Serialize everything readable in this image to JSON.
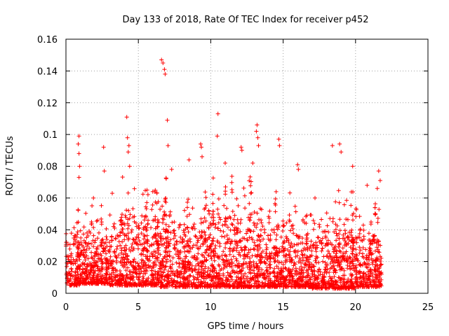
{
  "chart_data": {
    "type": "scatter",
    "title": "Day 133 of 2018, Rate Of TEC Index for receiver p452",
    "xlabel": "GPS time / hours",
    "ylabel": "ROTI / TECUs",
    "xlim": [
      0,
      25
    ],
    "ylim": [
      0,
      0.16
    ],
    "xticks": [
      0,
      5,
      10,
      15,
      20,
      25
    ],
    "yticks": [
      0,
      0.02,
      0.04,
      0.06,
      0.08,
      0.1,
      0.12,
      0.14,
      0.16
    ],
    "xtick_labels": [
      "0",
      "5",
      "10",
      "15",
      "20",
      "25"
    ],
    "ytick_labels": [
      "0",
      "0.02",
      "0.04",
      "0.06",
      "0.08",
      "0.1",
      "0.12",
      "0.14",
      "0.16"
    ],
    "grid": true,
    "marker": "+",
    "color": "#ff0000",
    "data_extent_x": [
      0,
      21.8
    ],
    "baseline_range": [
      0.005,
      0.045
    ],
    "notable_points": [
      {
        "x": 6.6,
        "y": 0.147
      },
      {
        "x": 6.7,
        "y": 0.145
      },
      {
        "x": 6.8,
        "y": 0.141
      },
      {
        "x": 6.85,
        "y": 0.138
      },
      {
        "x": 7.0,
        "y": 0.109
      },
      {
        "x": 7.05,
        "y": 0.093
      },
      {
        "x": 4.2,
        "y": 0.111
      },
      {
        "x": 4.25,
        "y": 0.098
      },
      {
        "x": 4.35,
        "y": 0.093
      },
      {
        "x": 4.3,
        "y": 0.089
      },
      {
        "x": 4.4,
        "y": 0.08
      },
      {
        "x": 10.5,
        "y": 0.113
      },
      {
        "x": 10.45,
        "y": 0.099
      },
      {
        "x": 13.2,
        "y": 0.106
      },
      {
        "x": 13.15,
        "y": 0.102
      },
      {
        "x": 13.25,
        "y": 0.098
      },
      {
        "x": 13.3,
        "y": 0.093
      },
      {
        "x": 14.7,
        "y": 0.097
      },
      {
        "x": 14.75,
        "y": 0.093
      },
      {
        "x": 0.9,
        "y": 0.099
      },
      {
        "x": 0.85,
        "y": 0.094
      },
      {
        "x": 0.9,
        "y": 0.088
      },
      {
        "x": 0.95,
        "y": 0.08
      },
      {
        "x": 0.9,
        "y": 0.073
      },
      {
        "x": 2.6,
        "y": 0.092
      },
      {
        "x": 2.65,
        "y": 0.077
      },
      {
        "x": 9.3,
        "y": 0.094
      },
      {
        "x": 9.35,
        "y": 0.092
      },
      {
        "x": 9.4,
        "y": 0.086
      },
      {
        "x": 12.1,
        "y": 0.092
      },
      {
        "x": 12.15,
        "y": 0.09
      },
      {
        "x": 18.4,
        "y": 0.093
      },
      {
        "x": 18.9,
        "y": 0.094
      },
      {
        "x": 19.0,
        "y": 0.089
      },
      {
        "x": 19.8,
        "y": 0.08
      },
      {
        "x": 16.0,
        "y": 0.081
      },
      {
        "x": 16.05,
        "y": 0.078
      },
      {
        "x": 21.6,
        "y": 0.077
      },
      {
        "x": 21.7,
        "y": 0.071
      },
      {
        "x": 21.5,
        "y": 0.066
      },
      {
        "x": 7.3,
        "y": 0.078
      },
      {
        "x": 8.5,
        "y": 0.084
      },
      {
        "x": 11.0,
        "y": 0.082
      },
      {
        "x": 12.9,
        "y": 0.082
      },
      {
        "x": 3.2,
        "y": 0.063
      },
      {
        "x": 1.9,
        "y": 0.06
      },
      {
        "x": 5.6,
        "y": 0.065
      },
      {
        "x": 6.0,
        "y": 0.064
      },
      {
        "x": 17.2,
        "y": 0.06
      },
      {
        "x": 20.8,
        "y": 0.068
      }
    ],
    "dense_band": [
      {
        "x_range": [
          0,
          1.0
        ],
        "y_range": [
          0.005,
          0.043
        ]
      },
      {
        "x_range": [
          1.0,
          3.0
        ],
        "y_range": [
          0.006,
          0.045
        ]
      },
      {
        "x_range": [
          3.0,
          6.5
        ],
        "y_range": [
          0.005,
          0.058
        ]
      },
      {
        "x_range": [
          6.5,
          10.0
        ],
        "y_range": [
          0.004,
          0.055
        ]
      },
      {
        "x_range": [
          10.0,
          14.0
        ],
        "y_range": [
          0.004,
          0.058
        ]
      },
      {
        "x_range": [
          14.0,
          17.0
        ],
        "y_range": [
          0.004,
          0.05
        ]
      },
      {
        "x_range": [
          17.0,
          20.0
        ],
        "y_range": [
          0.003,
          0.052
        ]
      },
      {
        "x_range": [
          20.0,
          21.8
        ],
        "y_range": [
          0.004,
          0.045
        ]
      }
    ]
  }
}
